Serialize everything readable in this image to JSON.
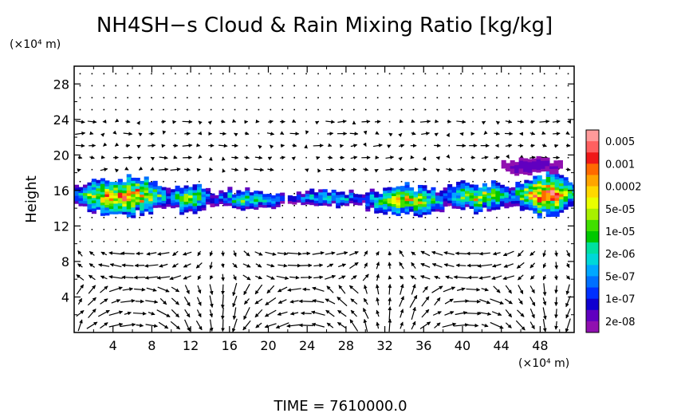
{
  "chart_data": {
    "type": "heatmap",
    "title": "NH4SH−s Cloud & Rain Mixing Ratio [kg/kg]",
    "ylabel": "Height",
    "xunit": "(×10⁴ m)",
    "yunit": "(×10⁴ m)",
    "footer": "TIME = 7610000.0",
    "xlim": [
      0,
      51.5
    ],
    "ylim": [
      0,
      30
    ],
    "xticks": [
      4,
      8,
      12,
      16,
      20,
      24,
      28,
      32,
      36,
      40,
      44,
      48
    ],
    "yticks": [
      4,
      8,
      12,
      16,
      20,
      24,
      28
    ],
    "colorbar": {
      "labels": [
        "0.005",
        "0.001",
        "0.0002",
        "5e-05",
        "1e-05",
        "2e-06",
        "5e-07",
        "1e-07",
        "2e-08"
      ],
      "colors": [
        "#ff9a9a",
        "#ff6060",
        "#f01818",
        "#ff6a00",
        "#ffa500",
        "#ffd800",
        "#eaff00",
        "#a8f000",
        "#40e000",
        "#00c800",
        "#00e0a0",
        "#00d8d8",
        "#00a8ff",
        "#0070ff",
        "#0030ff",
        "#1000d0",
        "#6000c0",
        "#9010b0"
      ]
    },
    "cloud_blobs": [
      {
        "x0": 0.0,
        "x1": 9.5,
        "y0": 13.2,
        "y1": 17.5,
        "peak": 0.8
      },
      {
        "x0": 9.5,
        "x1": 14.0,
        "y0": 13.5,
        "y1": 16.5,
        "peak": 0.55
      },
      {
        "x0": 14.0,
        "x1": 21.5,
        "y0": 14.0,
        "y1": 16.0,
        "peak": 0.45
      },
      {
        "x0": 22.0,
        "x1": 30.0,
        "y0": 14.2,
        "y1": 15.8,
        "peak": 0.4
      },
      {
        "x0": 30.0,
        "x1": 38.0,
        "y0": 13.0,
        "y1": 16.5,
        "peak": 0.7
      },
      {
        "x0": 38.0,
        "x1": 45.0,
        "y0": 13.5,
        "y1": 16.8,
        "peak": 0.6
      },
      {
        "x0": 45.0,
        "x1": 51.5,
        "y0": 13.2,
        "y1": 17.8,
        "peak": 0.85
      },
      {
        "x0": 44.0,
        "x1": 50.0,
        "y0": 17.8,
        "y1": 19.5,
        "peak": 0.1
      }
    ],
    "wind_vectors_note": "Strong arrows below 10 and weak ones above 18."
  }
}
